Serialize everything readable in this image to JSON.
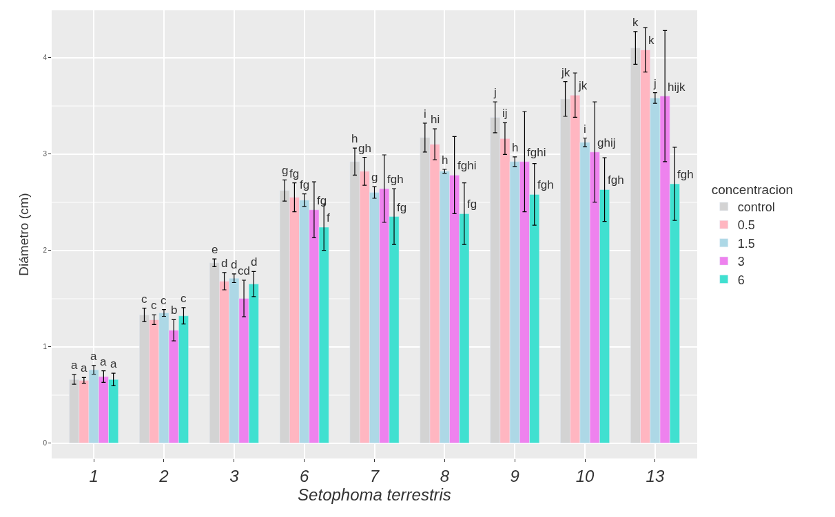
{
  "chart_data": {
    "type": "bar",
    "xlabel": "Setophoma terrestris",
    "ylabel": "Diámetro (cm)",
    "legend_title": "concentracion",
    "categories": [
      "1",
      "2",
      "3",
      "6",
      "7",
      "8",
      "9",
      "10",
      "13"
    ],
    "series": [
      {
        "name": "control",
        "color": "#d3d3d3",
        "values": [
          0.66,
          1.33,
          1.87,
          2.62,
          2.92,
          3.17,
          3.38,
          3.57,
          4.1
        ],
        "errors": [
          0.05,
          0.07,
          0.04,
          0.11,
          0.14,
          0.15,
          0.16,
          0.18,
          0.17
        ],
        "value_labels": [
          "a",
          "c",
          "e",
          "g",
          "h",
          "i",
          "j",
          "jk",
          "k"
        ]
      },
      {
        "name": "0.5",
        "color": "#ffb6c1",
        "values": [
          0.65,
          1.28,
          1.68,
          2.55,
          2.82,
          3.1,
          3.16,
          3.61,
          4.08
        ],
        "errors": [
          0.03,
          0.05,
          0.09,
          0.15,
          0.145,
          0.16,
          0.165,
          0.23,
          0.23
        ],
        "value_labels": [
          "a",
          "c",
          "d",
          "fg",
          "gh",
          "hi",
          "ij",
          "jk",
          "k"
        ]
      },
      {
        "name": "1.5",
        "color": "#add8e6",
        "values": [
          0.76,
          1.35,
          1.71,
          2.52,
          2.6,
          2.82,
          2.92,
          3.12,
          3.58
        ],
        "errors": [
          0.045,
          0.035,
          0.045,
          0.065,
          0.06,
          0.02,
          0.05,
          0.045,
          0.055
        ],
        "value_labels": [
          "a",
          "c",
          "d",
          "fg",
          "g",
          "h",
          "h",
          "i",
          "j"
        ]
      },
      {
        "name": "3",
        "color": "#ee82ee",
        "values": [
          0.69,
          1.17,
          1.5,
          2.42,
          2.64,
          2.78,
          2.92,
          3.02,
          3.6
        ],
        "errors": [
          0.06,
          0.11,
          0.19,
          0.29,
          0.35,
          0.4,
          0.52,
          0.52,
          0.68
        ],
        "value_labels": [
          "a",
          "b",
          "cd",
          "fg",
          "fgh",
          "fghi",
          "fghi",
          "ghij",
          "hijk"
        ]
      },
      {
        "name": "6",
        "color": "#40e0d0",
        "values": [
          0.66,
          1.32,
          1.65,
          2.24,
          2.35,
          2.38,
          2.58,
          2.63,
          2.69
        ],
        "errors": [
          0.065,
          0.085,
          0.13,
          0.24,
          0.29,
          0.32,
          0.32,
          0.33,
          0.38
        ],
        "value_labels": [
          "a",
          "c",
          "d",
          "f",
          "fg",
          "fg",
          "fgh",
          "fgh",
          "fgh"
        ]
      }
    ],
    "ylim": [
      -0.16,
      4.49
    ],
    "yticks": [
      0,
      1,
      2,
      3,
      4
    ],
    "grid": true,
    "legend": "right"
  }
}
